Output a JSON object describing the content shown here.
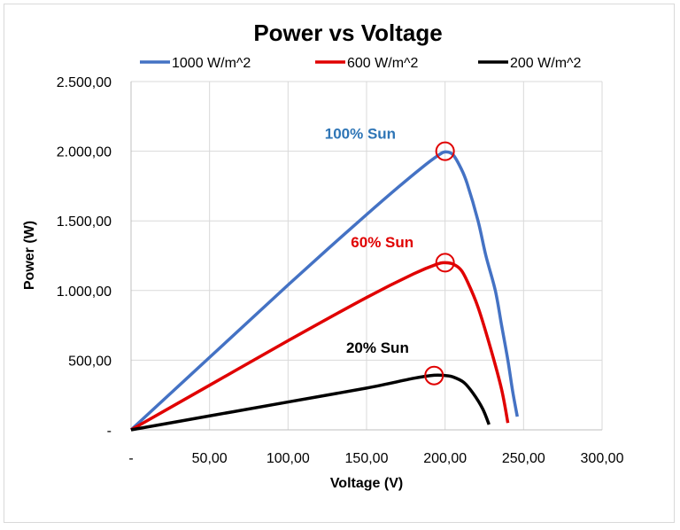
{
  "chart_data": {
    "type": "line",
    "title": "Power vs Voltage",
    "xlabel": "Voltage (V)",
    "ylabel": "Power (W)",
    "xlim": [
      0,
      300
    ],
    "ylim": [
      0,
      2500
    ],
    "grid": true,
    "legend_placement": "top",
    "x_ticks": [
      0,
      50,
      100,
      150,
      200,
      250,
      300
    ],
    "x_tick_labels": [
      "-",
      "50,00",
      "100,00",
      "150,00",
      "200,00",
      "250,00",
      "300,00"
    ],
    "y_ticks": [
      0,
      500,
      1000,
      1500,
      2000,
      2500
    ],
    "y_tick_labels": [
      "-",
      "500,00",
      "1.000,00",
      "1.500,00",
      "2.000,00",
      "2.500,00"
    ],
    "series": [
      {
        "name": "1000 W/m^2",
        "color": "#4472c4",
        "x": [
          0,
          25,
          50,
          75,
          100,
          125,
          150,
          170,
          185,
          195,
          200,
          205,
          210,
          214,
          221,
          226,
          232,
          236,
          240,
          243,
          246
        ],
        "y": [
          0,
          260,
          520,
          780,
          1040,
          1295,
          1545,
          1740,
          1880,
          1965,
          1995,
          1975,
          1880,
          1770,
          1500,
          1250,
          1000,
          750,
          500,
          280,
          95
        ]
      },
      {
        "name": "600 W/m^2",
        "color": "#e00000",
        "x": [
          0,
          50,
          100,
          150,
          180,
          195,
          200,
          205,
          210,
          214,
          221,
          229,
          236,
          240
        ],
        "y": [
          0,
          320,
          640,
          950,
          1120,
          1190,
          1200,
          1190,
          1150,
          1070,
          880,
          585,
          290,
          50
        ]
      },
      {
        "name": "200 W/m^2",
        "color": "#000000",
        "x": [
          0,
          50,
          100,
          150,
          180,
          193,
          200,
          205,
          212,
          218,
          224,
          228
        ],
        "y": [
          0,
          100,
          200,
          300,
          370,
          392,
          390,
          380,
          340,
          260,
          150,
          38
        ]
      }
    ],
    "markers": [
      {
        "x": 200,
        "y": 2000,
        "color": "#e00000"
      },
      {
        "x": 200,
        "y": 1200,
        "color": "#e00000"
      },
      {
        "x": 193,
        "y": 390,
        "color": "#e00000"
      }
    ],
    "annotations": [
      {
        "text": "100% Sun",
        "x": 146,
        "y": 2090,
        "color": "#2e75b6"
      },
      {
        "text": "60% Sun",
        "x": 160,
        "y": 1310,
        "color": "#e00000"
      },
      {
        "text": "20% Sun",
        "x": 157,
        "y": 553,
        "color": "#000000"
      }
    ]
  }
}
